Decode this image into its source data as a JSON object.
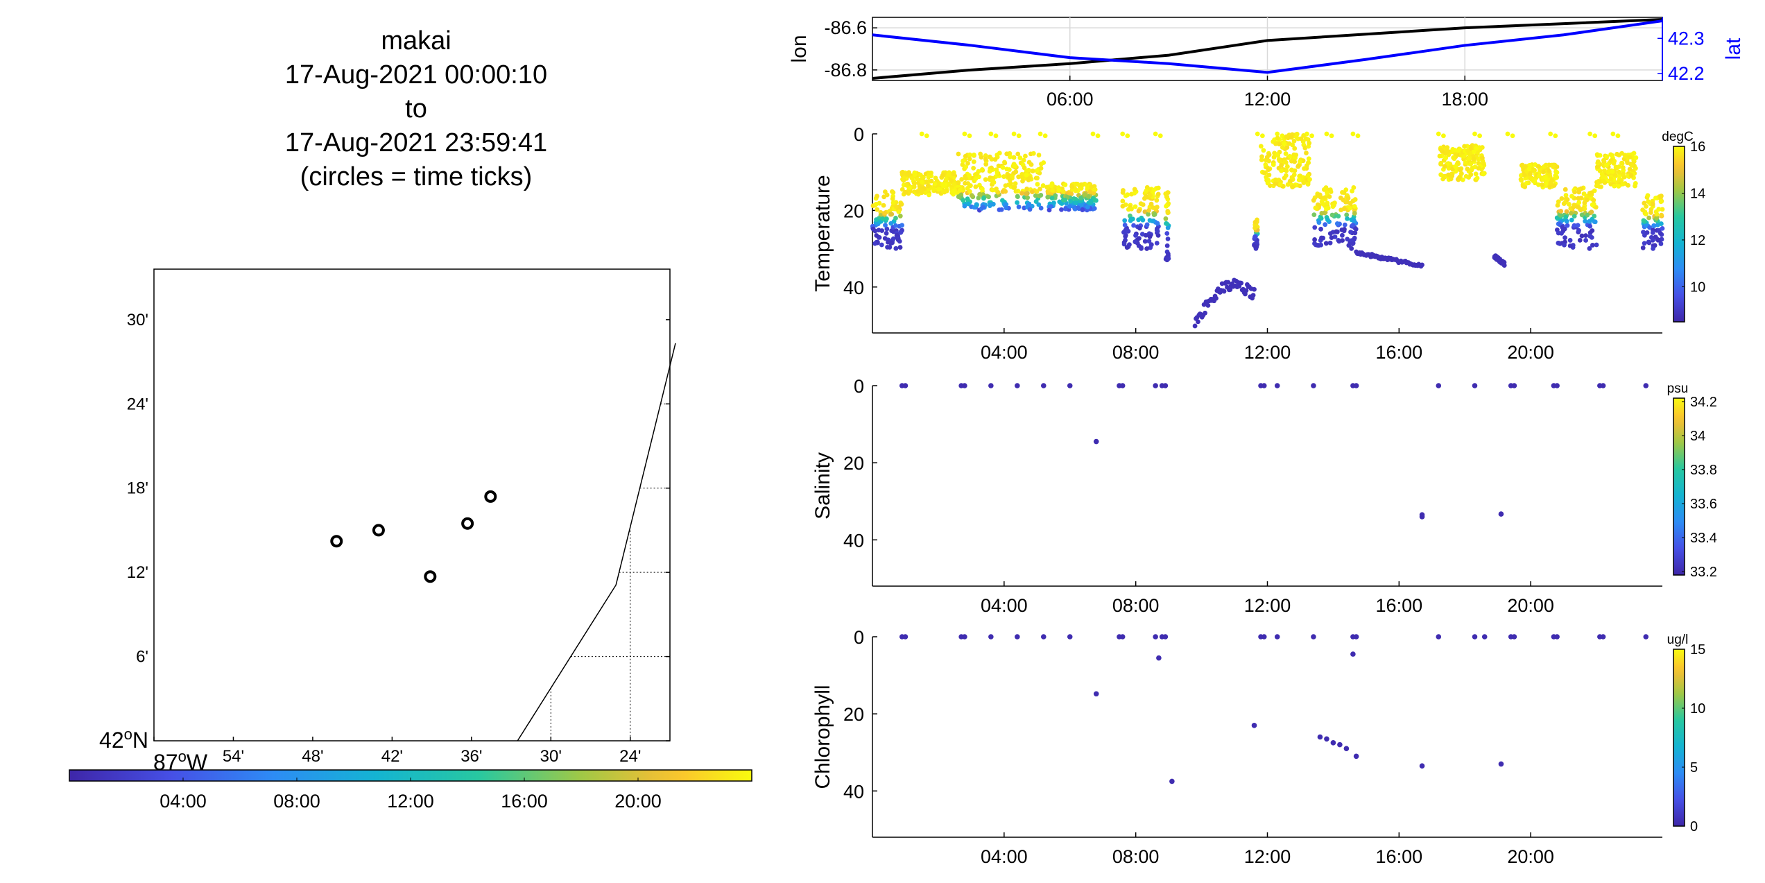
{
  "title": {
    "line1": "makai",
    "line2": "17-Aug-2021 00:00:10",
    "line3": "to",
    "line4": "17-Aug-2021 23:59:41",
    "line5": "(circles = time ticks)"
  },
  "colors": {
    "parula_low": "#3e26a8",
    "parula_mid": "#1fa9c9",
    "parula_high": "#f9fb0e",
    "lon_line": "#000000",
    "lat_line": "#0000ff"
  },
  "chart_data": [
    {
      "id": "map",
      "type": "scatter",
      "xlabel_labels": [
        "87°W",
        "54'",
        "48'",
        "42'",
        "36'",
        "30'",
        "24'"
      ],
      "ylabel_labels": [
        "42°N",
        "6'",
        "12'",
        "18'",
        "24'",
        "30'"
      ],
      "xlim": [
        -87.0,
        -86.35
      ],
      "ylim": [
        42.0,
        42.56
      ],
      "x_ticks": [
        -87.0,
        -86.9,
        -86.8,
        -86.7,
        -86.6,
        -86.5,
        -86.4
      ],
      "y_ticks": [
        42.0,
        42.1,
        42.2,
        42.3,
        42.4,
        42.5
      ],
      "circles": [
        {
          "lon": -86.717,
          "lat": 42.25
        },
        {
          "lon": -86.77,
          "lat": 42.237
        },
        {
          "lon": -86.652,
          "lat": 42.195
        },
        {
          "lon": -86.605,
          "lat": 42.258
        },
        {
          "lon": -86.576,
          "lat": 42.29
        }
      ],
      "coastline": [
        [
          -86.343,
          42.472
        ],
        [
          -86.418,
          42.185
        ],
        [
          -86.542,
          42.0
        ]
      ],
      "colorbar": {
        "ticks": [
          "04:00",
          "08:00",
          "12:00",
          "16:00",
          "20:00"
        ]
      }
    },
    {
      "id": "lonlat",
      "type": "line",
      "ylabel": "lon",
      "ylabel_right": "lat",
      "x_ticks": [
        "06:00",
        "12:00",
        "18:00"
      ],
      "xlim": [
        0,
        24
      ],
      "ylim_left": [
        -86.85,
        -86.55
      ],
      "ylim_right": [
        42.18,
        42.36
      ],
      "left_ticks": [
        "-86.6",
        "-86.8"
      ],
      "right_ticks": [
        "42.3",
        "42.2"
      ],
      "series": [
        {
          "name": "lon",
          "points": [
            [
              0,
              -86.84
            ],
            [
              3,
              -86.8
            ],
            [
              6,
              -86.77
            ],
            [
              9,
              -86.73
            ],
            [
              12,
              -86.66
            ],
            [
              15,
              -86.63
            ],
            [
              18,
              -86.6
            ],
            [
              21,
              -86.58
            ],
            [
              24,
              -86.56
            ]
          ]
        },
        {
          "name": "lat",
          "points": [
            [
              0,
              42.31
            ],
            [
              3,
              42.28
            ],
            [
              6,
              42.245
            ],
            [
              9,
              42.228
            ],
            [
              12,
              42.203
            ],
            [
              15,
              42.24
            ],
            [
              18,
              42.28
            ],
            [
              21,
              42.31
            ],
            [
              24,
              42.35
            ]
          ]
        }
      ]
    },
    {
      "id": "temperature",
      "type": "scatter",
      "ylabel": "Temperature",
      "cbar_unit": "degC",
      "cbar_ticks": [
        "16",
        "14",
        "12",
        "10"
      ],
      "cbar_range": [
        8.5,
        16
      ],
      "x_ticks": [
        "04:00",
        "08:00",
        "12:00",
        "16:00",
        "20:00"
      ],
      "y_ticks": [
        "0",
        "20",
        "40"
      ],
      "xlim": [
        0,
        24
      ],
      "ylim": [
        0,
        52
      ],
      "segments": [
        {
          "t0": 0.0,
          "t1": 0.9,
          "dmin": 15,
          "dmax": 30,
          "kind": "strat"
        },
        {
          "t0": 0.9,
          "t1": 2.6,
          "dmin": 10,
          "dmax": 16,
          "kind": "warm"
        },
        {
          "t0": 2.6,
          "t1": 5.2,
          "dmin": 5,
          "dmax": 20,
          "kind": "mix"
        },
        {
          "t0": 5.3,
          "t1": 6.8,
          "dmin": 13,
          "dmax": 20,
          "kind": "mix"
        },
        {
          "t0": 7.6,
          "t1": 8.7,
          "dmin": 14,
          "dmax": 30,
          "kind": "strat"
        },
        {
          "t0": 8.9,
          "t1": 9.0,
          "dmin": 14,
          "dmax": 33,
          "kind": "strat"
        },
        {
          "t0": 11.6,
          "t1": 11.7,
          "dmin": 22,
          "dmax": 30,
          "kind": "strat"
        },
        {
          "t0": 11.8,
          "t1": 13.3,
          "dmin": 0,
          "dmax": 14,
          "kind": "warm"
        },
        {
          "t0": 13.4,
          "t1": 14.7,
          "dmin": 14,
          "dmax": 30,
          "kind": "strat"
        },
        {
          "t0": 17.2,
          "t1": 18.6,
          "dmin": 3,
          "dmax": 12,
          "kind": "warm"
        },
        {
          "t0": 19.7,
          "t1": 20.8,
          "dmin": 8,
          "dmax": 14,
          "kind": "warm"
        },
        {
          "t0": 20.8,
          "t1": 22.0,
          "dmin": 14,
          "dmax": 30,
          "kind": "strat"
        },
        {
          "t0": 22.0,
          "t1": 23.2,
          "dmin": 5,
          "dmax": 14,
          "kind": "warm"
        },
        {
          "t0": 23.4,
          "t1": 24.0,
          "dmin": 16,
          "dmax": 30,
          "kind": "strat"
        }
      ],
      "surface_times": [
        1.5,
        2.8,
        3.6,
        4.3,
        5.1,
        6.7,
        7.6,
        8.6,
        11.7,
        12.3,
        13.2,
        13.8,
        14.6,
        17.2,
        18.3,
        19.3,
        20.6,
        21.8,
        22.5
      ],
      "deep_tracks": [
        {
          "t0": 14.7,
          "t1": 16.7,
          "d0": 31,
          "d1": 34.5,
          "temp": 8.8
        },
        {
          "t0": 18.9,
          "t1": 19.2,
          "d0": 32,
          "d1": 34,
          "temp": 8.8
        },
        {
          "t0": 9.8,
          "t1": 11.6,
          "d0": 40,
          "d1": 50,
          "temp": 8.8,
          "loop": true
        }
      ]
    },
    {
      "id": "salinity",
      "type": "scatter",
      "ylabel": "Salinity",
      "cbar_unit": "psu",
      "cbar_ticks": [
        "34.2",
        "34",
        "33.8",
        "33.6",
        "33.4",
        "33.2"
      ],
      "cbar_range": [
        33.18,
        34.22
      ],
      "x_ticks": [
        "04:00",
        "08:00",
        "12:00",
        "16:00",
        "20:00"
      ],
      "y_ticks": [
        "0",
        "20",
        "40"
      ],
      "xlim": [
        0,
        24
      ],
      "ylim": [
        0,
        52
      ],
      "points": [
        [
          0.9,
          0
        ],
        [
          1.0,
          0
        ],
        [
          2.7,
          0
        ],
        [
          2.8,
          0
        ],
        [
          3.6,
          0
        ],
        [
          4.4,
          0
        ],
        [
          5.2,
          0
        ],
        [
          6.0,
          0
        ],
        [
          7.5,
          0
        ],
        [
          7.6,
          0
        ],
        [
          8.6,
          0
        ],
        [
          8.8,
          0
        ],
        [
          8.9,
          0
        ],
        [
          11.8,
          0
        ],
        [
          11.9,
          0
        ],
        [
          12.3,
          0
        ],
        [
          13.4,
          0
        ],
        [
          14.6,
          0
        ],
        [
          14.7,
          0
        ],
        [
          17.2,
          0
        ],
        [
          18.3,
          0
        ],
        [
          19.4,
          0
        ],
        [
          19.5,
          0
        ],
        [
          20.7,
          0
        ],
        [
          20.8,
          0
        ],
        [
          22.1,
          0
        ],
        [
          22.2,
          0
        ],
        [
          23.5,
          0
        ],
        [
          6.8,
          14.5
        ],
        [
          16.7,
          33.5
        ],
        [
          16.7,
          34
        ],
        [
          19.1,
          33.3
        ]
      ]
    },
    {
      "id": "chlorophyll",
      "type": "scatter",
      "ylabel": "Chlorophyll",
      "cbar_unit": "ug/l",
      "cbar_ticks": [
        "15",
        "10",
        "5",
        "0"
      ],
      "cbar_range": [
        0,
        15
      ],
      "x_ticks": [
        "04:00",
        "08:00",
        "12:00",
        "16:00",
        "20:00"
      ],
      "y_ticks": [
        "0",
        "20",
        "40"
      ],
      "xlim": [
        0,
        24
      ],
      "ylim": [
        0,
        52
      ],
      "points": [
        [
          0.9,
          0
        ],
        [
          1.0,
          0
        ],
        [
          2.7,
          0
        ],
        [
          2.8,
          0
        ],
        [
          3.6,
          0
        ],
        [
          4.4,
          0
        ],
        [
          5.2,
          0
        ],
        [
          6.0,
          0
        ],
        [
          7.5,
          0
        ],
        [
          7.6,
          0
        ],
        [
          8.6,
          0
        ],
        [
          8.8,
          0
        ],
        [
          8.9,
          0
        ],
        [
          11.8,
          0
        ],
        [
          11.9,
          0
        ],
        [
          12.3,
          0
        ],
        [
          13.4,
          0
        ],
        [
          14.6,
          0
        ],
        [
          14.7,
          0
        ],
        [
          17.2,
          0
        ],
        [
          18.3,
          0
        ],
        [
          18.6,
          0
        ],
        [
          19.4,
          0
        ],
        [
          19.5,
          0
        ],
        [
          20.7,
          0
        ],
        [
          20.8,
          0
        ],
        [
          22.1,
          0
        ],
        [
          22.2,
          0
        ],
        [
          23.5,
          0
        ],
        [
          8.7,
          5.5
        ],
        [
          14.6,
          4.5
        ],
        [
          6.8,
          14.8
        ],
        [
          11.6,
          23
        ],
        [
          9.1,
          37.5
        ],
        [
          13.6,
          26
        ],
        [
          13.8,
          26.5
        ],
        [
          14.0,
          27.5
        ],
        [
          14.2,
          28
        ],
        [
          14.4,
          29
        ],
        [
          14.7,
          31
        ],
        [
          16.7,
          33.5
        ],
        [
          19.1,
          33
        ]
      ]
    }
  ]
}
